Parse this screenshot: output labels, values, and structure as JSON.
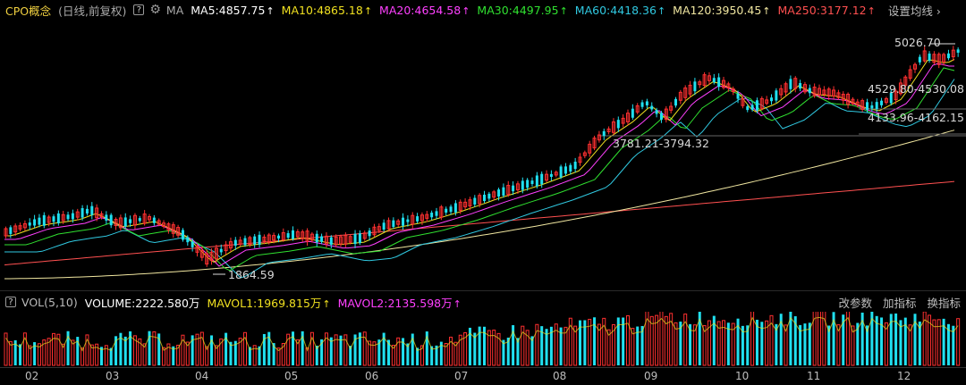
{
  "top_bar": {
    "title": "CPO概念",
    "subtitle": "(日线,前复权)",
    "help": "?",
    "ma_label": "MA",
    "ma": [
      {
        "text": "MA5:4857.75",
        "color": "#ffffff"
      },
      {
        "text": "MA10:4865.18",
        "color": "#f0e020"
      },
      {
        "text": "MA20:4654.58",
        "color": "#ff40ff"
      },
      {
        "text": "MA30:4497.95",
        "color": "#30e030"
      },
      {
        "text": "MA60:4418.36",
        "color": "#30c8e0"
      },
      {
        "text": "MA120:3950.45",
        "color": "#f0e6a0"
      },
      {
        "text": "MA250:3177.12",
        "color": "#ff5050"
      }
    ],
    "settings": "设置均线"
  },
  "price_labels": {
    "high": "5026.70",
    "low": "1864.59",
    "gap1": "4529.80-4530.08",
    "gap2": "4133.96-4162.15",
    "gap3": "3781.21-3794.32"
  },
  "vol_bar": {
    "help": "?",
    "indicator": "VOL(5,10)",
    "volume": "VOLUME:2222.580万",
    "mavol1": "MAVOL1:1969.815万",
    "mavol2": "MAVOL2:2135.598万",
    "tools": [
      "改参数",
      "加指标",
      "换指标"
    ]
  },
  "x_axis": [
    "02",
    "03",
    "04",
    "05",
    "06",
    "07",
    "08",
    "09",
    "10",
    "11",
    "12"
  ],
  "colors": {
    "up": "#ff3030",
    "down": "#20e0f0"
  }
}
